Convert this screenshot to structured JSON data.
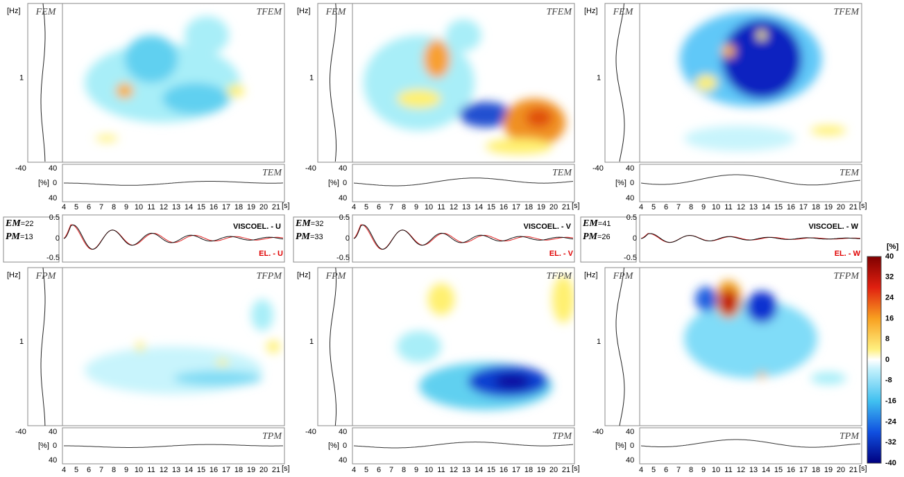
{
  "labels": {
    "hz": "[Hz]",
    "fem": "FEM",
    "tfem": "TFEM",
    "tem": "TEM",
    "fpm": "FPM",
    "tfpm": "TFPM",
    "tpm": "TPM",
    "freq_tick": "1",
    "strip_left": "-40",
    "strip_right": "40",
    "amp_top": "40",
    "amp_mid": "0",
    "amp_bottom": "40",
    "pct": "[%]",
    "seconds": "[s]",
    "seis_top": "0.5",
    "seis_mid": "0",
    "seis_bottom": "-0.5",
    "em": "EM",
    "pm": "PM",
    "time_ticks": [
      "4",
      "5",
      "6",
      "7",
      "8",
      "9",
      "10",
      "11",
      "12",
      "13",
      "14",
      "15",
      "16",
      "17",
      "18",
      "19",
      "20",
      "21"
    ]
  },
  "columns": [
    {
      "em_value": "=22",
      "pm_value": "=13",
      "viscoel": "VISCOEL. - U",
      "el": "EL. - U"
    },
    {
      "em_value": "=32",
      "pm_value": "=33",
      "viscoel": "VISCOEL. - V",
      "el": "EL. - V"
    },
    {
      "em_value": "=41",
      "pm_value": "=26",
      "viscoel": "VISCOEL. - W",
      "el": "EL. - W"
    }
  ],
  "colorbar": {
    "unit": "[%]",
    "ticks": [
      "40",
      "32",
      "24",
      "16",
      "8",
      "0",
      "-8",
      "-16",
      "-24",
      "-32",
      "-40"
    ]
  }
}
